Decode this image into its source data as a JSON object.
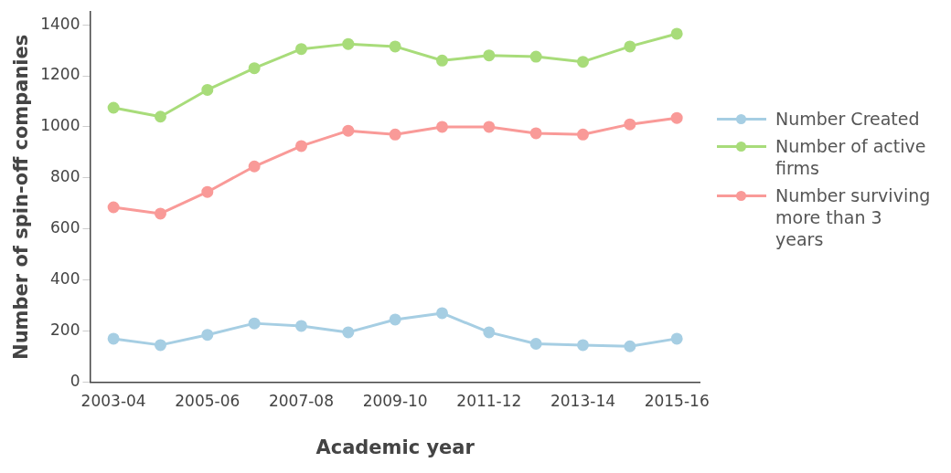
{
  "chart_data": {
    "type": "line",
    "xlabel": "Academic year",
    "ylabel": "Number of spin-off companies",
    "categories": [
      "2003-04",
      null,
      "2005-06",
      null,
      "2007-08",
      null,
      "2009-10",
      null,
      "2011-12",
      null,
      "2013-14",
      null,
      "2015-16"
    ],
    "series": [
      {
        "name": "Number Created",
        "color": "#a6cee3",
        "values": [
          170,
          145,
          185,
          230,
          220,
          195,
          245,
          270,
          195,
          150,
          145,
          140,
          170
        ]
      },
      {
        "name": "Number of active firms",
        "color": "#a8dc7a",
        "values": [
          1075,
          1040,
          1145,
          1230,
          1305,
          1325,
          1315,
          1260,
          1280,
          1275,
          1255,
          1315,
          1365
        ]
      },
      {
        "name": "Number surviving more than 3 years",
        "color": "#f99a98",
        "values": [
          685,
          660,
          745,
          845,
          925,
          985,
          970,
          1000,
          1000,
          975,
          970,
          1010,
          1035
        ]
      }
    ],
    "ylim": [
      0,
      1450
    ],
    "yticks": [
      0,
      200,
      400,
      600,
      800,
      1000,
      1200,
      1400
    ],
    "grid": false,
    "legend": "right",
    "marker": "circle",
    "line_style": "solid"
  }
}
